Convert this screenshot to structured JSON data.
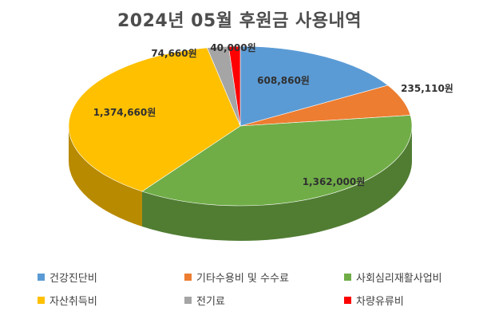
{
  "chart_data": {
    "type": "pie",
    "title": "2024년 05월 후원금 사용내역",
    "categories": [
      "건강진단비",
      "기타수용비 및 수수료",
      "사회심리재활사업비",
      "자산취득비",
      "전기료",
      "차량유류비"
    ],
    "values": [
      608860,
      235110,
      1362000,
      1374660,
      74660,
      40000
    ],
    "data_labels": [
      "608,860원",
      "235,110원",
      "1,362,000원",
      "1,374,660원",
      "74,660원",
      "40,000원"
    ],
    "colors": [
      "#5b9bd5",
      "#ed7d31",
      "#70ad47",
      "#ffc000",
      "#a5a5a5",
      "#ff0000"
    ],
    "style": "3d",
    "legend_position": "bottom"
  }
}
